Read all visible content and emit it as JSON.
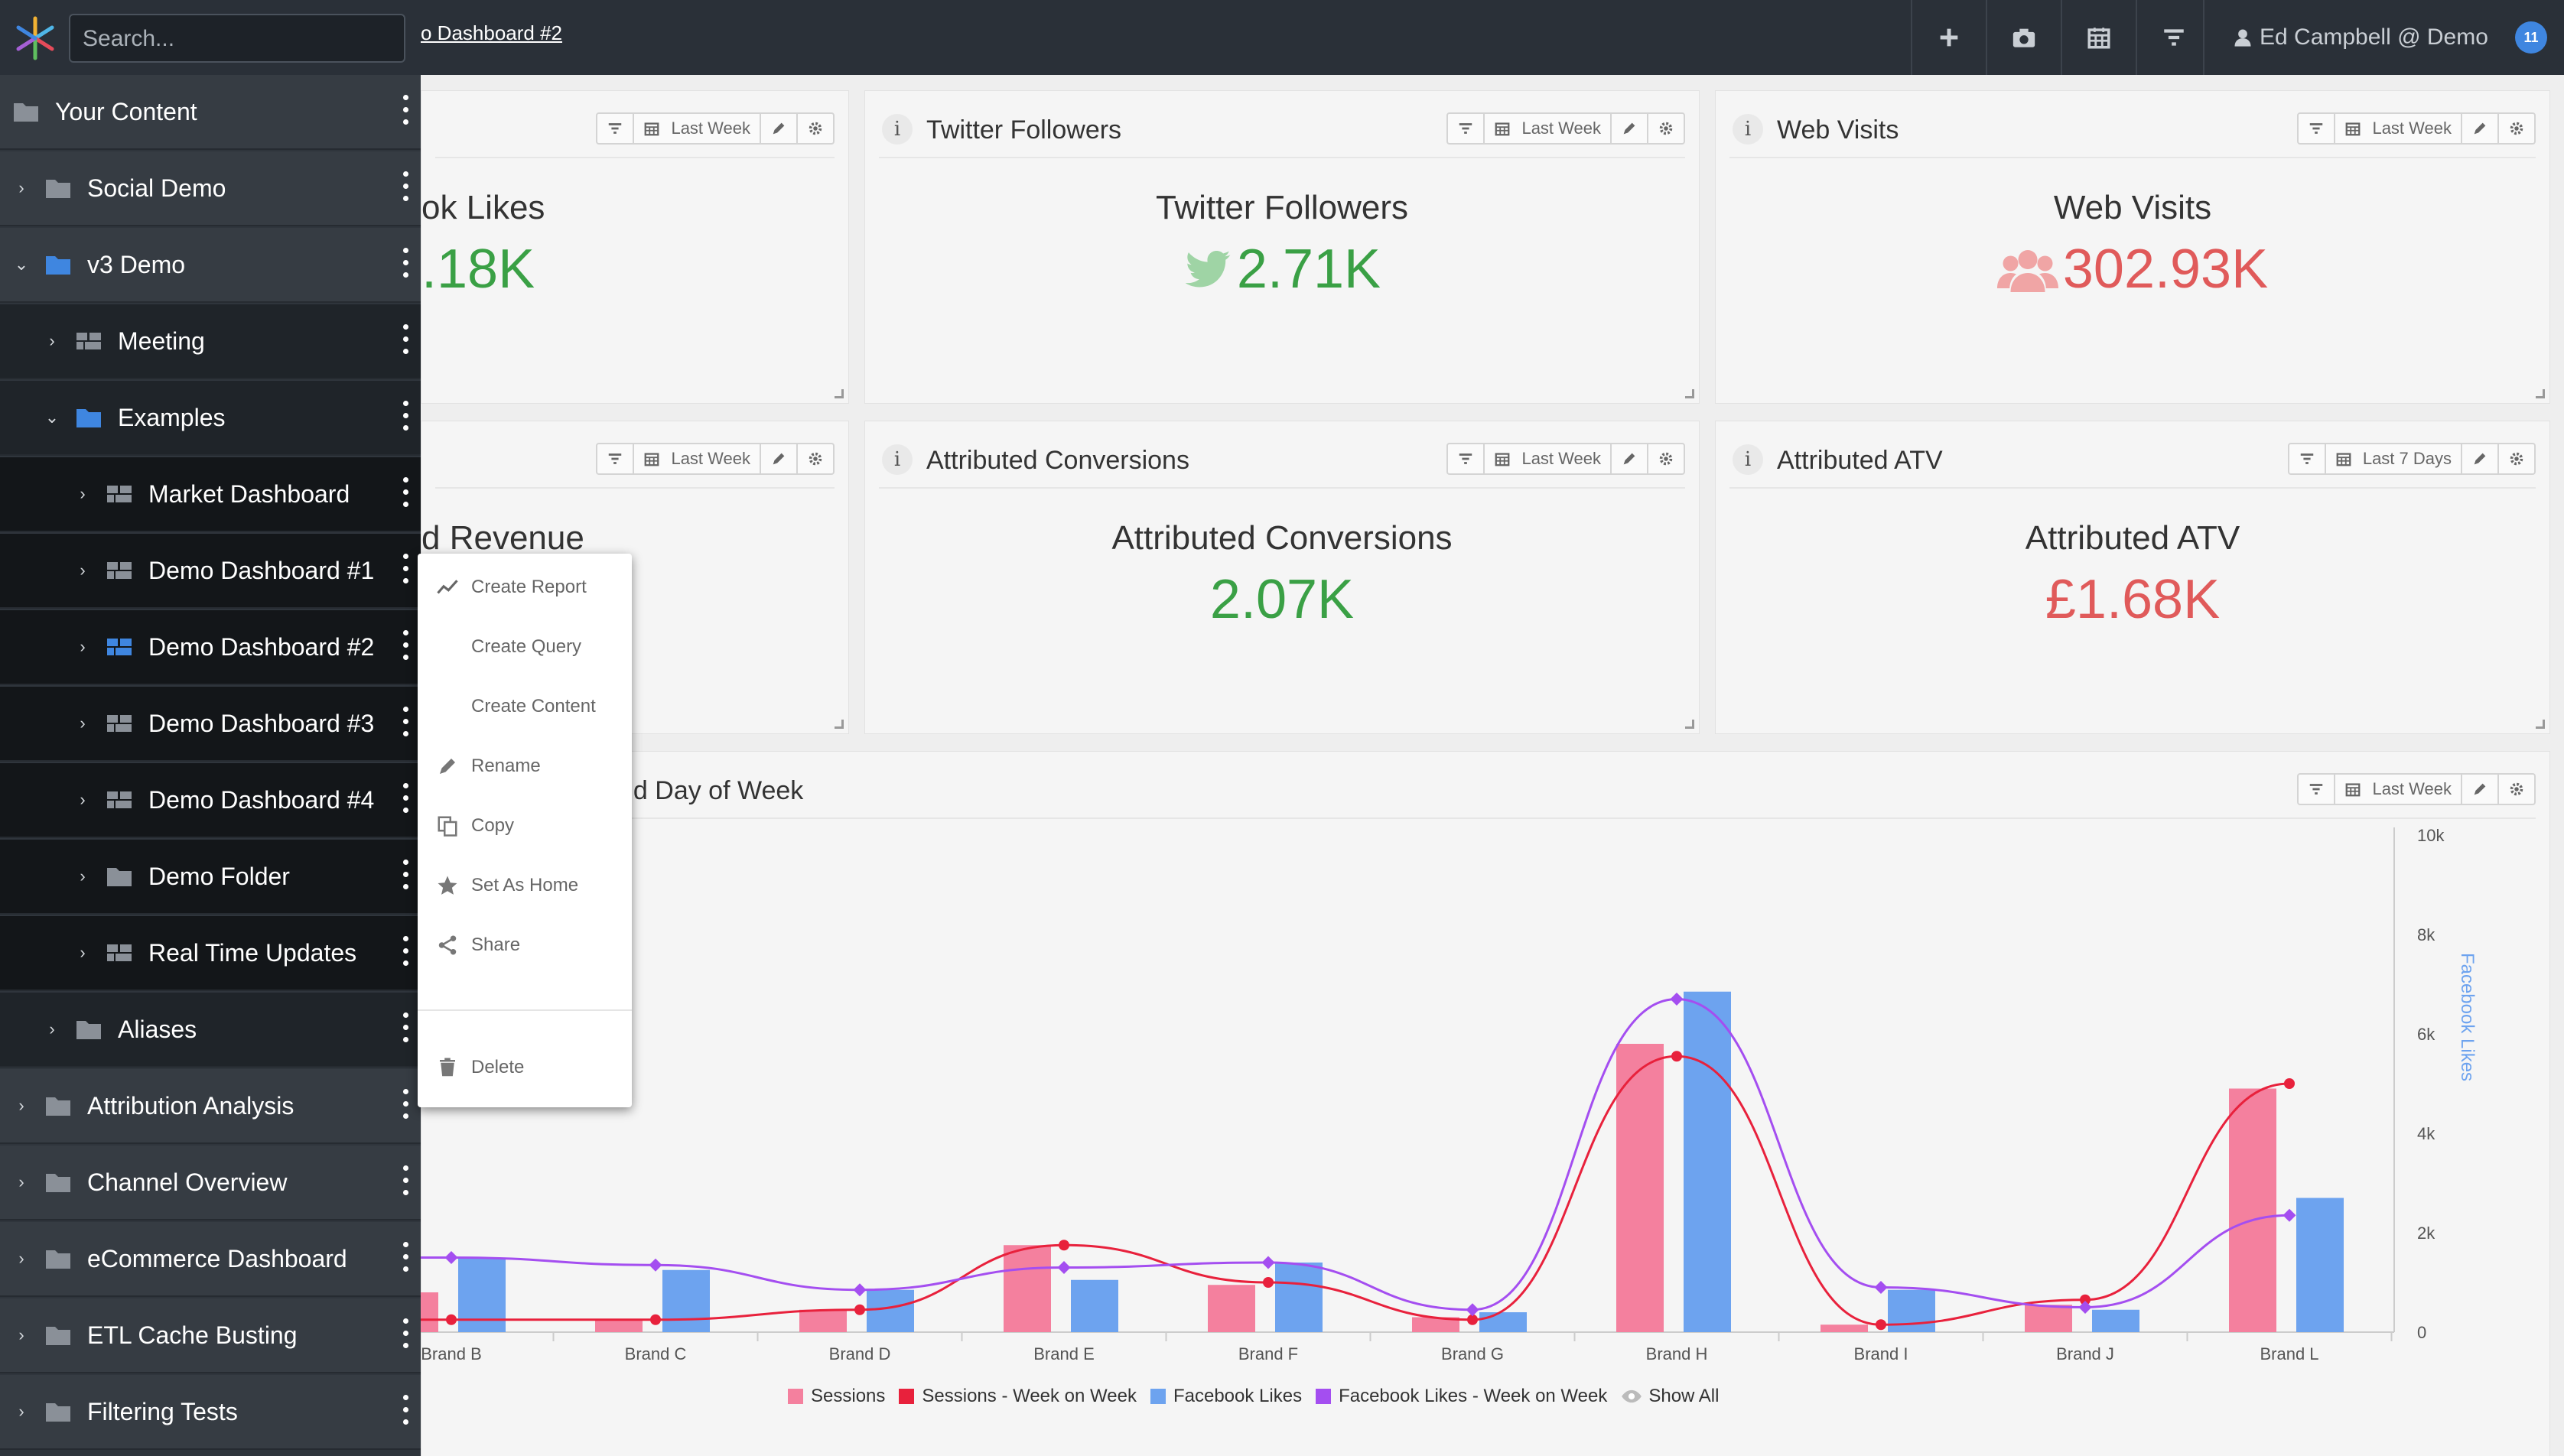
{
  "topbar": {
    "search_placeholder": "Search...",
    "breadcrumb": "o Dashboard #2",
    "user_label": "Ed Campbell @ Demo",
    "notification_count": "11"
  },
  "sidebar": {
    "items": [
      {
        "label": "Your Content",
        "level": 0
      },
      {
        "label": "Social Demo",
        "level": 0
      },
      {
        "label": "v3 Demo",
        "level": 0
      },
      {
        "label": "Meeting",
        "level": 1
      },
      {
        "label": "Examples",
        "level": 1
      },
      {
        "label": "Market Dashboard",
        "level": 2
      },
      {
        "label": "Demo Dashboard #1",
        "level": 2
      },
      {
        "label": "Demo Dashboard #2",
        "level": 2
      },
      {
        "label": "Demo Dashboard #3",
        "level": 2
      },
      {
        "label": "Demo Dashboard #4",
        "level": 2
      },
      {
        "label": "Demo Folder",
        "level": 2
      },
      {
        "label": "Real Time Updates",
        "level": 2
      },
      {
        "label": "Aliases",
        "level": 1
      },
      {
        "label": "Attribution Analysis",
        "level": 0
      },
      {
        "label": "Channel Overview",
        "level": 0
      },
      {
        "label": "eCommerce Dashboard",
        "level": 0
      },
      {
        "label": "ETL Cache Busting",
        "level": 0
      },
      {
        "label": "Filtering Tests",
        "level": 0
      }
    ]
  },
  "context_menu": {
    "items": [
      "Create Report",
      "Create Query",
      "Create Content",
      "Rename",
      "Copy",
      "Set As Home",
      "Share",
      "Delete"
    ]
  },
  "cards": [
    {
      "header": "",
      "title": "ok Likes",
      "value": ".18K",
      "range": "Last Week",
      "color": "#3aa045"
    },
    {
      "header": "Twitter Followers",
      "title": "Twitter Followers",
      "value": "2.71K",
      "range": "Last Week",
      "color": "#3aa045",
      "icon": "twitter-icon"
    },
    {
      "header": "Web Visits",
      "title": "Web Visits",
      "value": "302.93K",
      "range": "Last Week",
      "color": "#e05a5a",
      "icon": "users-icon"
    },
    {
      "header": "",
      "title": "d Revenue",
      "value": "",
      "range": "Last Week",
      "color": "#3aa045"
    },
    {
      "header": "Attributed Conversions",
      "title": "Attributed Conversions",
      "value": "2.07K",
      "range": "Last Week",
      "color": "#3aa045"
    },
    {
      "header": "Attributed ATV",
      "title": "Attributed ATV",
      "value": "£1.68K",
      "range": "Last 7 Days",
      "color": "#e05a5a"
    }
  ],
  "chart_card": {
    "header": "nd Day of Week",
    "range": "Last Week"
  },
  "chart_data": {
    "type": "bar",
    "categories": [
      "Brand B",
      "Brand C",
      "Brand D",
      "Brand E",
      "Brand F",
      "Brand G",
      "Brand H",
      "Brand I",
      "Brand J",
      "Brand L"
    ],
    "series": [
      {
        "name": "Sessions",
        "type": "bar",
        "color": "#f4809e",
        "values": [
          800,
          250,
          450,
          1750,
          950,
          300,
          5800,
          150,
          550,
          4900
        ]
      },
      {
        "name": "Sessions - Week on Week",
        "type": "line",
        "color": "#e8213c",
        "values": [
          250,
          250,
          450,
          1750,
          1000,
          250,
          5550,
          150,
          650,
          5000
        ]
      },
      {
        "name": "Facebook Likes",
        "type": "bar",
        "color": "#6da3ef",
        "values": [
          1500,
          1250,
          850,
          1050,
          1400,
          400,
          6850,
          850,
          450,
          2700
        ]
      },
      {
        "name": "Facebook Likes - Week on Week",
        "type": "line",
        "color": "#a44ef0",
        "values": [
          1500,
          1350,
          850,
          1300,
          1400,
          450,
          6700,
          900,
          500,
          2350
        ]
      }
    ],
    "y_ticks": [
      "0",
      "2k",
      "4k",
      "6k",
      "8k",
      "10k"
    ],
    "ylim": [
      0,
      10000
    ],
    "ylabel_right": "Facebook Likes",
    "legend_extra": "Show All",
    "grid": true
  }
}
